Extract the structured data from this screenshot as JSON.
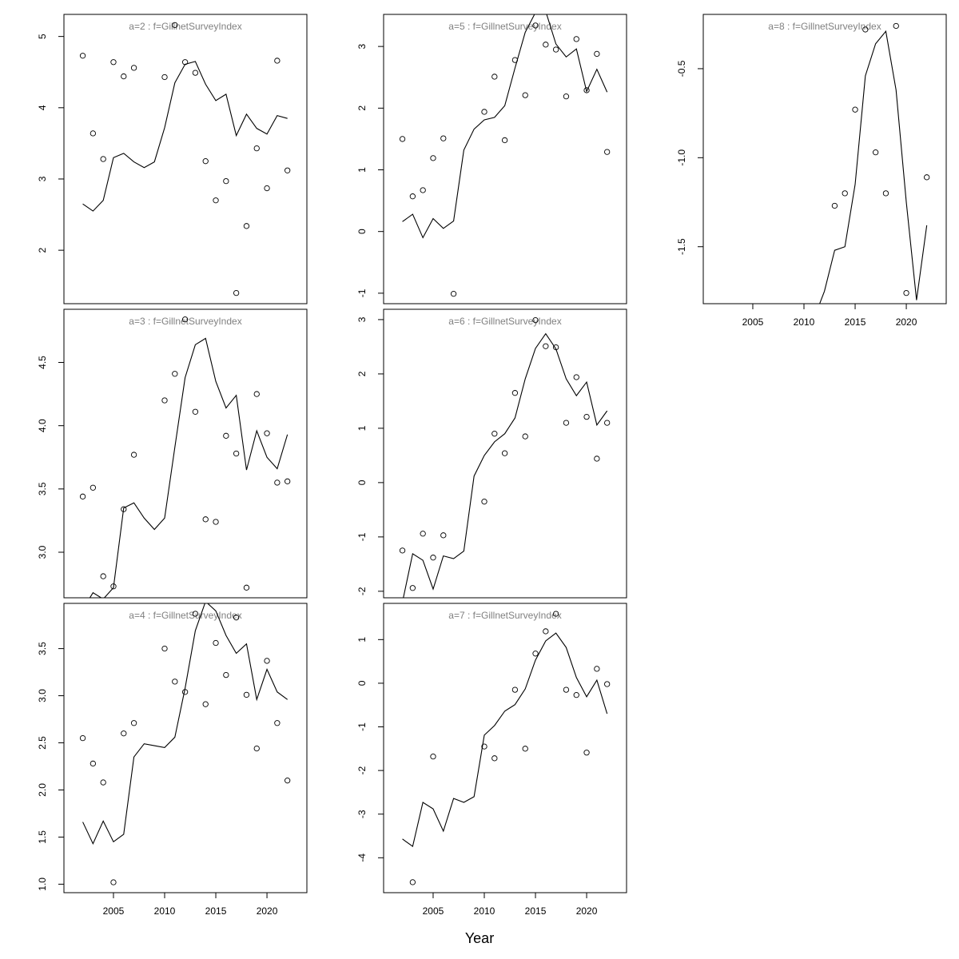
{
  "xlabel": "Year",
  "chart_data": [
    {
      "type": "line",
      "title": "a=2  :  f=GillnetSurveyIndex",
      "x": [
        2002,
        2003,
        2004,
        2005,
        2006,
        2007,
        2008,
        2009,
        2010,
        2011,
        2012,
        2013,
        2014,
        2015,
        2016,
        2017,
        2018,
        2019,
        2020,
        2021,
        2022
      ],
      "xlim": [
        2000.16,
        2023.9
      ],
      "ylim": [
        1.25,
        5.31
      ],
      "yticks": [
        2,
        3,
        4,
        5
      ],
      "series": [
        {
          "mode": "points",
          "color": "#000000",
          "values": [
            4.73,
            3.64,
            3.28,
            4.64,
            4.44,
            4.56,
            null,
            null,
            4.43,
            5.16,
            4.64,
            4.49,
            3.25,
            2.7,
            2.97,
            1.4,
            2.34,
            3.43,
            2.87,
            4.66,
            3.12
          ]
        },
        {
          "mode": "line",
          "color": "#000000",
          "values": [
            2.65,
            2.55,
            2.7,
            3.3,
            3.36,
            3.24,
            3.16,
            3.24,
            3.72,
            4.35,
            4.61,
            4.65,
            4.33,
            4.1,
            4.19,
            3.61,
            3.91,
            3.71,
            3.63,
            3.89,
            3.85
          ]
        }
      ]
    },
    {
      "type": "line",
      "title": "a=3  :  f=GillnetSurveyIndex",
      "x": [
        2002,
        2003,
        2004,
        2005,
        2006,
        2007,
        2008,
        2009,
        2010,
        2011,
        2012,
        2013,
        2014,
        2015,
        2016,
        2017,
        2018,
        2019,
        2020,
        2021,
        2022
      ],
      "xlim": [
        2000.16,
        2023.9
      ],
      "ylim": [
        2.64,
        4.92
      ],
      "yticks": [
        {
          "value": 3.0,
          "label": "3.0"
        },
        3.5,
        {
          "value": 4.0,
          "label": "4.0"
        },
        4.5
      ],
      "series": [
        {
          "mode": "points",
          "color": "#000000",
          "values": [
            3.44,
            3.51,
            2.81,
            2.73,
            3.34,
            3.77,
            null,
            null,
            4.2,
            4.41,
            4.84,
            4.11,
            3.26,
            3.24,
            3.92,
            3.78,
            2.72,
            4.25,
            3.94,
            3.55,
            3.56
          ]
        },
        {
          "mode": "line",
          "color": "#000000",
          "values": [
            2.55,
            2.68,
            2.63,
            2.72,
            3.35,
            3.39,
            3.27,
            3.18,
            3.27,
            3.83,
            4.38,
            4.64,
            4.69,
            4.35,
            4.14,
            4.24,
            3.65,
            3.96,
            3.75,
            3.66,
            3.93
          ]
        }
      ]
    },
    {
      "type": "line",
      "title": "a=4  :  f=GillnetSurveyIndex",
      "x": [
        2002,
        2003,
        2004,
        2005,
        2006,
        2007,
        2008,
        2009,
        2010,
        2011,
        2012,
        2013,
        2014,
        2015,
        2016,
        2017,
        2018,
        2019,
        2020,
        2021,
        2022
      ],
      "xlim": [
        2000.16,
        2023.9
      ],
      "xticks": [
        2005,
        2010,
        2015,
        2020
      ],
      "ylim": [
        0.91,
        3.98
      ],
      "yticks": [
        {
          "value": 1.0,
          "label": "1.0"
        },
        1.5,
        {
          "value": 2.0,
          "label": "2.0"
        },
        2.5,
        {
          "value": 3.0,
          "label": "3.0"
        },
        3.5
      ],
      "series": [
        {
          "mode": "points",
          "color": "#000000",
          "values": [
            2.55,
            2.28,
            2.08,
            1.02,
            2.6,
            2.71,
            null,
            null,
            3.5,
            3.15,
            3.04,
            3.87,
            2.91,
            3.56,
            3.22,
            3.83,
            3.01,
            2.44,
            3.37,
            2.71,
            2.1
          ]
        },
        {
          "mode": "line",
          "color": "#000000",
          "values": [
            1.66,
            1.43,
            1.67,
            1.45,
            1.53,
            2.35,
            2.49,
            2.47,
            2.45,
            2.56,
            3.08,
            3.69,
            4.0,
            3.9,
            3.64,
            3.45,
            3.55,
            2.96,
            3.28,
            3.04,
            2.96
          ]
        }
      ]
    },
    {
      "type": "line",
      "title": "a=5  :  f=GillnetSurveyIndex",
      "x": [
        2002,
        2003,
        2004,
        2005,
        2006,
        2007,
        2008,
        2009,
        2010,
        2011,
        2012,
        2013,
        2014,
        2015,
        2016,
        2017,
        2018,
        2019,
        2020,
        2021,
        2022
      ],
      "xlim": [
        2000.16,
        2023.9
      ],
      "ylim": [
        -1.17,
        3.52
      ],
      "yticks": [
        -1,
        0,
        1,
        2,
        3
      ],
      "series": [
        {
          "mode": "points",
          "color": "#000000",
          "values": [
            1.5,
            0.57,
            0.67,
            1.19,
            1.51,
            -1.01,
            null,
            null,
            1.94,
            2.51,
            1.48,
            2.78,
            2.21,
            3.34,
            3.03,
            2.95,
            2.19,
            3.12,
            2.29,
            2.88,
            1.29
          ]
        },
        {
          "mode": "line",
          "color": "#000000",
          "values": [
            0.16,
            0.28,
            -0.1,
            0.21,
            0.05,
            0.17,
            1.32,
            1.66,
            1.81,
            1.85,
            2.04,
            2.65,
            3.23,
            3.55,
            3.57,
            3.04,
            2.83,
            2.96,
            2.27,
            2.63,
            2.26
          ]
        }
      ]
    },
    {
      "type": "line",
      "title": "a=6  :  f=GillnetSurveyIndex",
      "x": [
        2002,
        2003,
        2004,
        2005,
        2006,
        2007,
        2008,
        2009,
        2010,
        2011,
        2012,
        2013,
        2014,
        2015,
        2016,
        2017,
        2018,
        2019,
        2020,
        2021,
        2022
      ],
      "xlim": [
        2000.16,
        2023.9
      ],
      "ylim": [
        -2.12,
        3.19
      ],
      "yticks": [
        -2,
        -1,
        0,
        1,
        2,
        3
      ],
      "series": [
        {
          "mode": "points",
          "color": "#000000",
          "values": [
            -1.25,
            -1.94,
            -0.94,
            -1.38,
            -0.97,
            null,
            null,
            null,
            -0.35,
            0.9,
            0.54,
            1.65,
            0.85,
            2.99,
            2.51,
            2.49,
            1.1,
            1.94,
            1.21,
            0.44,
            1.1
          ]
        },
        {
          "mode": "line",
          "color": "#000000",
          "values": [
            -2.2,
            -1.31,
            -1.43,
            -1.96,
            -1.35,
            -1.4,
            -1.26,
            0.12,
            0.5,
            0.75,
            0.9,
            1.19,
            1.91,
            2.47,
            2.74,
            2.46,
            1.91,
            1.6,
            1.85,
            1.06,
            1.32
          ]
        }
      ]
    },
    {
      "type": "line",
      "title": "a=7  :  f=GillnetSurveyIndex",
      "x": [
        2002,
        2003,
        2004,
        2005,
        2006,
        2007,
        2008,
        2009,
        2010,
        2011,
        2012,
        2013,
        2014,
        2015,
        2016,
        2017,
        2018,
        2019,
        2020,
        2021,
        2022
      ],
      "xlim": [
        2000.16,
        2023.9
      ],
      "xticks": [
        2005,
        2010,
        2015,
        2020
      ],
      "ylim": [
        -4.8,
        1.83
      ],
      "yticks": [
        -4,
        -3,
        -2,
        -1,
        0,
        1
      ],
      "series": [
        {
          "mode": "points",
          "color": "#000000",
          "values": [
            null,
            -4.56,
            null,
            -1.68,
            null,
            null,
            null,
            null,
            -1.45,
            -1.72,
            null,
            -0.15,
            -1.5,
            0.68,
            1.19,
            1.59,
            -0.15,
            -0.27,
            -1.59,
            0.33,
            -0.02
          ]
        },
        {
          "mode": "line",
          "color": "#000000",
          "values": [
            -3.57,
            -3.74,
            -2.73,
            -2.88,
            -3.39,
            -2.64,
            -2.73,
            -2.6,
            -1.19,
            -0.97,
            -0.64,
            -0.49,
            -0.13,
            0.53,
            0.97,
            1.15,
            0.82,
            0.13,
            -0.31,
            0.07,
            -0.7
          ]
        }
      ]
    },
    {
      "type": "line",
      "title": "a=8  :  f=GillnetSurveyIndex",
      "x": [
        2002,
        2003,
        2004,
        2005,
        2006,
        2007,
        2008,
        2009,
        2010,
        2011,
        2012,
        2013,
        2014,
        2015,
        2016,
        2017,
        2018,
        2019,
        2020,
        2021,
        2022
      ],
      "xlim": [
        2000.16,
        2023.9
      ],
      "xticks": [
        2005,
        2010,
        2015,
        2020
      ],
      "ylim": [
        -1.82,
        -0.195
      ],
      "yticks": [
        {
          "value": -1.5,
          "label": "-1.5"
        },
        {
          "value": -1.0,
          "label": "-1.0"
        },
        -0.5
      ],
      "series": [
        {
          "mode": "points",
          "color": "#000000",
          "values": [
            null,
            null,
            null,
            null,
            null,
            null,
            null,
            null,
            null,
            null,
            null,
            -1.27,
            -1.2,
            -0.73,
            -0.28,
            -0.97,
            -1.2,
            -0.26,
            -1.76,
            null,
            -1.11
          ]
        },
        {
          "mode": "line",
          "color": "#000000",
          "values": [
            null,
            null,
            null,
            null,
            null,
            null,
            null,
            null,
            null,
            -1.9,
            -1.75,
            -1.52,
            -1.5,
            -1.15,
            -0.54,
            -0.36,
            -0.29,
            -0.62,
            -1.25,
            -1.8,
            -1.38
          ]
        }
      ]
    }
  ]
}
